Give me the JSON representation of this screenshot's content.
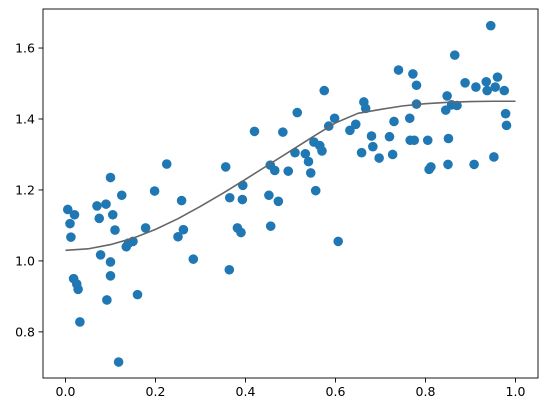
{
  "chart_data": {
    "type": "scatter",
    "title": "",
    "xlabel": "",
    "ylabel": "",
    "xlim": [
      -0.05,
      1.05
    ],
    "ylim": [
      0.67,
      1.71
    ],
    "grid": false,
    "x_ticks": [
      {
        "value": 0.0,
        "label": "0.0"
      },
      {
        "value": 0.2,
        "label": "0.2"
      },
      {
        "value": 0.4,
        "label": "0.4"
      },
      {
        "value": 0.6,
        "label": "0.6"
      },
      {
        "value": 0.8,
        "label": "0.8"
      },
      {
        "value": 1.0,
        "label": "1.0"
      }
    ],
    "y_ticks": [
      {
        "value": 0.8,
        "label": "0.8"
      },
      {
        "value": 1.0,
        "label": "1.0"
      },
      {
        "value": 1.2,
        "label": "1.2"
      },
      {
        "value": 1.4,
        "label": "1.4"
      },
      {
        "value": 1.6,
        "label": "1.6"
      }
    ],
    "colors": {
      "points": "#1f77b4",
      "curve": "#666666",
      "axes": "#000000"
    },
    "series": [
      {
        "kind": "scatter",
        "points": [
          {
            "x": 0.005,
            "y": 1.145
          },
          {
            "x": 0.01,
            "y": 1.105
          },
          {
            "x": 0.012,
            "y": 1.067
          },
          {
            "x": 0.018,
            "y": 0.95
          },
          {
            "x": 0.02,
            "y": 1.13
          },
          {
            "x": 0.025,
            "y": 0.935
          },
          {
            "x": 0.028,
            "y": 0.92
          },
          {
            "x": 0.032,
            "y": 0.828
          },
          {
            "x": 0.07,
            "y": 1.155
          },
          {
            "x": 0.075,
            "y": 1.12
          },
          {
            "x": 0.078,
            "y": 1.017
          },
          {
            "x": 0.09,
            "y": 1.16
          },
          {
            "x": 0.092,
            "y": 0.89
          },
          {
            "x": 0.1,
            "y": 1.235
          },
          {
            "x": 0.1,
            "y": 0.997
          },
          {
            "x": 0.1,
            "y": 0.958
          },
          {
            "x": 0.105,
            "y": 1.13
          },
          {
            "x": 0.11,
            "y": 1.087
          },
          {
            "x": 0.118,
            "y": 0.715
          },
          {
            "x": 0.125,
            "y": 1.185
          },
          {
            "x": 0.135,
            "y": 1.04
          },
          {
            "x": 0.14,
            "y": 1.05
          },
          {
            "x": 0.15,
            "y": 1.055
          },
          {
            "x": 0.16,
            "y": 0.905
          },
          {
            "x": 0.178,
            "y": 1.093
          },
          {
            "x": 0.198,
            "y": 1.197
          },
          {
            "x": 0.225,
            "y": 1.273
          },
          {
            "x": 0.25,
            "y": 1.068
          },
          {
            "x": 0.258,
            "y": 1.17
          },
          {
            "x": 0.262,
            "y": 1.088
          },
          {
            "x": 0.284,
            "y": 1.005
          },
          {
            "x": 0.356,
            "y": 1.265
          },
          {
            "x": 0.364,
            "y": 0.975
          },
          {
            "x": 0.365,
            "y": 1.178
          },
          {
            "x": 0.382,
            "y": 1.093
          },
          {
            "x": 0.39,
            "y": 1.08
          },
          {
            "x": 0.393,
            "y": 1.173
          },
          {
            "x": 0.394,
            "y": 1.213
          },
          {
            "x": 0.42,
            "y": 1.365
          },
          {
            "x": 0.452,
            "y": 1.185
          },
          {
            "x": 0.455,
            "y": 1.27
          },
          {
            "x": 0.456,
            "y": 1.098
          },
          {
            "x": 0.465,
            "y": 1.255
          },
          {
            "x": 0.473,
            "y": 1.168
          },
          {
            "x": 0.483,
            "y": 1.363
          },
          {
            "x": 0.495,
            "y": 1.253
          },
          {
            "x": 0.51,
            "y": 1.305
          },
          {
            "x": 0.515,
            "y": 1.418
          },
          {
            "x": 0.533,
            "y": 1.302
          },
          {
            "x": 0.54,
            "y": 1.28
          },
          {
            "x": 0.545,
            "y": 1.248
          },
          {
            "x": 0.552,
            "y": 1.335
          },
          {
            "x": 0.556,
            "y": 1.198
          },
          {
            "x": 0.565,
            "y": 1.325
          },
          {
            "x": 0.57,
            "y": 1.31
          },
          {
            "x": 0.575,
            "y": 1.48
          },
          {
            "x": 0.585,
            "y": 1.38
          },
          {
            "x": 0.598,
            "y": 1.402
          },
          {
            "x": 0.606,
            "y": 1.055
          },
          {
            "x": 0.632,
            "y": 1.368
          },
          {
            "x": 0.645,
            "y": 1.385
          },
          {
            "x": 0.658,
            "y": 1.305
          },
          {
            "x": 0.663,
            "y": 1.448
          },
          {
            "x": 0.667,
            "y": 1.43
          },
          {
            "x": 0.68,
            "y": 1.352
          },
          {
            "x": 0.683,
            "y": 1.322
          },
          {
            "x": 0.697,
            "y": 1.29
          },
          {
            "x": 0.72,
            "y": 1.35
          },
          {
            "x": 0.727,
            "y": 1.3
          },
          {
            "x": 0.73,
            "y": 1.393
          },
          {
            "x": 0.74,
            "y": 1.538
          },
          {
            "x": 0.765,
            "y": 1.402
          },
          {
            "x": 0.766,
            "y": 1.34
          },
          {
            "x": 0.772,
            "y": 1.527
          },
          {
            "x": 0.775,
            "y": 1.34
          },
          {
            "x": 0.78,
            "y": 1.442
          },
          {
            "x": 0.78,
            "y": 1.495
          },
          {
            "x": 0.805,
            "y": 1.34
          },
          {
            "x": 0.808,
            "y": 1.258
          },
          {
            "x": 0.812,
            "y": 1.265
          },
          {
            "x": 0.845,
            "y": 1.425
          },
          {
            "x": 0.848,
            "y": 1.465
          },
          {
            "x": 0.85,
            "y": 1.272
          },
          {
            "x": 0.851,
            "y": 1.345
          },
          {
            "x": 0.858,
            "y": 1.44
          },
          {
            "x": 0.865,
            "y": 1.58
          },
          {
            "x": 0.87,
            "y": 1.438
          },
          {
            "x": 0.888,
            "y": 1.502
          },
          {
            "x": 0.908,
            "y": 1.272
          },
          {
            "x": 0.912,
            "y": 1.49
          },
          {
            "x": 0.935,
            "y": 1.505
          },
          {
            "x": 0.937,
            "y": 1.48
          },
          {
            "x": 0.945,
            "y": 1.663
          },
          {
            "x": 0.952,
            "y": 1.293
          },
          {
            "x": 0.955,
            "y": 1.49
          },
          {
            "x": 0.96,
            "y": 1.518
          },
          {
            "x": 0.975,
            "y": 1.48
          },
          {
            "x": 0.978,
            "y": 1.415
          },
          {
            "x": 0.98,
            "y": 1.382
          }
        ]
      },
      {
        "kind": "line",
        "points": [
          {
            "x": 0.0,
            "y": 1.03
          },
          {
            "x": 0.05,
            "y": 1.034
          },
          {
            "x": 0.1,
            "y": 1.046
          },
          {
            "x": 0.15,
            "y": 1.064
          },
          {
            "x": 0.2,
            "y": 1.089
          },
          {
            "x": 0.25,
            "y": 1.119
          },
          {
            "x": 0.3,
            "y": 1.154
          },
          {
            "x": 0.35,
            "y": 1.191
          },
          {
            "x": 0.4,
            "y": 1.23
          },
          {
            "x": 0.45,
            "y": 1.27
          },
          {
            "x": 0.5,
            "y": 1.31
          },
          {
            "x": 0.55,
            "y": 1.35
          },
          {
            "x": 0.6,
            "y": 1.389
          },
          {
            "x": 0.65,
            "y": 1.416
          },
          {
            "x": 0.7,
            "y": 1.427
          },
          {
            "x": 0.75,
            "y": 1.437
          },
          {
            "x": 0.8,
            "y": 1.443
          },
          {
            "x": 0.85,
            "y": 1.447
          },
          {
            "x": 0.9,
            "y": 1.449
          },
          {
            "x": 0.95,
            "y": 1.45
          },
          {
            "x": 1.0,
            "y": 1.45
          }
        ]
      }
    ]
  }
}
